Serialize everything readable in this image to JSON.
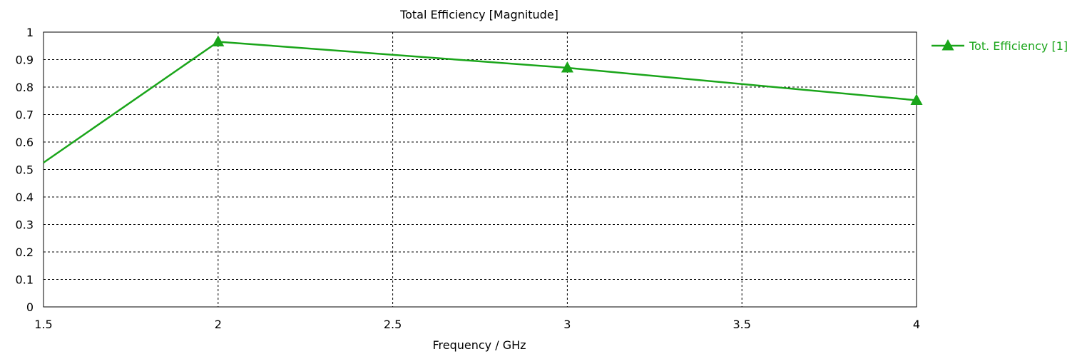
{
  "chart_data": {
    "type": "line",
    "title": "Total Efficiency [Magnitude]",
    "xlabel": "Frequency / GHz",
    "ylabel": "",
    "xlim": [
      1.5,
      4
    ],
    "ylim": [
      0,
      1
    ],
    "x_ticks": [
      "1.5",
      "2",
      "2.5",
      "3",
      "3.5",
      "4"
    ],
    "y_ticks": [
      "0",
      "0.1",
      "0.2",
      "0.3",
      "0.4",
      "0.5",
      "0.6",
      "0.7",
      "0.8",
      "0.9",
      "1"
    ],
    "grid": true,
    "legend_position": "right",
    "series": [
      {
        "name": "Tot. Efficiency [1]",
        "color": "#1aa51a",
        "marker": "triangle",
        "x": [
          1.5,
          2,
          3,
          4
        ],
        "y": [
          0.525,
          0.965,
          0.87,
          0.752
        ],
        "marker_x": [
          2,
          3,
          4
        ]
      }
    ]
  }
}
